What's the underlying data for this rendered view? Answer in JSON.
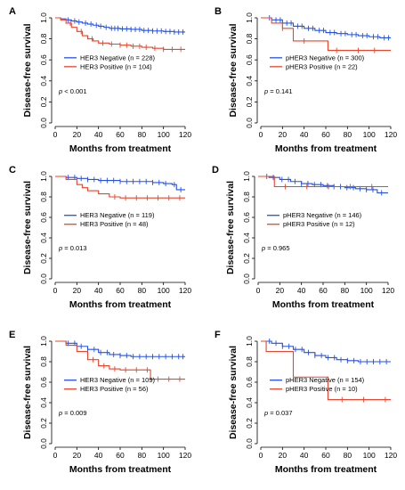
{
  "figure": {
    "panels": [
      {
        "letter": "A",
        "pvalue": {
          "prefix": "p",
          "text": " < 0.001"
        },
        "legend": [
          {
            "text": "HER3 Negative (n = 228)"
          },
          {
            "text": "HER3 Positive (n = 104)"
          }
        ]
      },
      {
        "letter": "B",
        "pvalue": {
          "prefix": "p",
          "text": " = 0.141"
        },
        "legend": [
          {
            "text": "pHER3 Negative (n = 300)"
          },
          {
            "text": "pHER3 Positive (n = 22)"
          }
        ]
      },
      {
        "letter": "C",
        "pvalue": {
          "prefix": "p",
          "text": " = 0.013"
        },
        "legend": [
          {
            "text": "HER3 Negative (n = 119)"
          },
          {
            "text": "HER3 Positive (n = 48)"
          }
        ]
      },
      {
        "letter": "D",
        "pvalue": {
          "prefix": "p",
          "text": " = 0.965"
        },
        "legend": [
          {
            "text": "pHER3 Negative (n = 146)"
          },
          {
            "text": "pHER3 Positive (n = 12)"
          }
        ]
      },
      {
        "letter": "E",
        "pvalue": {
          "prefix": "p",
          "text": " = 0.009"
        },
        "legend": [
          {
            "text": "HER3 Negative (n = 109)"
          },
          {
            "text": "HER3 Positive (n = 56)"
          }
        ]
      },
      {
        "letter": "F",
        "pvalue": {
          "prefix": "p",
          "text": " = 0.037"
        },
        "legend": [
          {
            "text": "pHER3 Negative (n = 154)"
          },
          {
            "text": "pHER3 Positive (n = 10)"
          }
        ]
      }
    ]
  },
  "chart_data": [
    {
      "type": "line",
      "panel": "A",
      "xlabel": "Months from treatment",
      "ylabel": "Disease-free survival",
      "xlim": [
        0,
        120
      ],
      "ylim": [
        0,
        1
      ],
      "xticks": [
        "0",
        "20",
        "40",
        "60",
        "80",
        "100",
        "120"
      ],
      "yticks": [
        "0.0",
        "0.2",
        "0.4",
        "0.6",
        "0.8",
        "1.0"
      ],
      "grid": false,
      "series": [
        {
          "name": "HER3 Negative (n = 228)",
          "color": "#2450e8",
          "x": [
            0,
            5,
            10,
            15,
            20,
            25,
            30,
            35,
            40,
            45,
            50,
            60,
            70,
            80,
            90,
            100,
            110,
            120
          ],
          "y": [
            1.0,
            0.99,
            0.98,
            0.97,
            0.96,
            0.95,
            0.94,
            0.93,
            0.92,
            0.91,
            0.9,
            0.895,
            0.89,
            0.88,
            0.875,
            0.87,
            0.865,
            0.865
          ],
          "censor_x": [
            12,
            18,
            22,
            28,
            33,
            38,
            42,
            47,
            52,
            55,
            58,
            62,
            66,
            70,
            74,
            78,
            82,
            86,
            90,
            94,
            98,
            102,
            106,
            110,
            114,
            118
          ]
        },
        {
          "name": "HER3 Positive (n = 104)",
          "color": "#e8452c",
          "x": [
            0,
            5,
            10,
            15,
            20,
            25,
            30,
            35,
            40,
            50,
            60,
            70,
            80,
            90,
            100,
            110,
            120
          ],
          "y": [
            1.0,
            0.98,
            0.95,
            0.91,
            0.87,
            0.83,
            0.8,
            0.78,
            0.76,
            0.75,
            0.74,
            0.73,
            0.72,
            0.71,
            0.7,
            0.7,
            0.7
          ],
          "censor_x": [
            14,
            24,
            34,
            44,
            52,
            60,
            66,
            72,
            78,
            84,
            92,
            100,
            108,
            116
          ]
        }
      ]
    },
    {
      "type": "line",
      "panel": "B",
      "xlabel": "Months from treatment",
      "ylabel": "Disease-free survival",
      "xlim": [
        0,
        120
      ],
      "ylim": [
        0,
        1
      ],
      "xticks": [
        "0",
        "20",
        "40",
        "60",
        "80",
        "100",
        "120"
      ],
      "yticks": [
        "0.0",
        "0.2",
        "0.4",
        "0.6",
        "0.8",
        "1.0"
      ],
      "grid": false,
      "series": [
        {
          "name": "pHER3 Negative (n = 300)",
          "color": "#2450e8",
          "x": [
            0,
            10,
            20,
            30,
            40,
            50,
            60,
            70,
            80,
            90,
            100,
            110,
            120
          ],
          "y": [
            1.0,
            0.98,
            0.95,
            0.92,
            0.9,
            0.88,
            0.86,
            0.85,
            0.84,
            0.83,
            0.82,
            0.81,
            0.81
          ],
          "censor_x": [
            8,
            14,
            18,
            24,
            28,
            34,
            38,
            44,
            48,
            54,
            58,
            64,
            68,
            74,
            78,
            84,
            88,
            94,
            98,
            104,
            108,
            114,
            118
          ]
        },
        {
          "name": "pHER3 Positive (n = 22)",
          "color": "#e8452c",
          "x": [
            0,
            10,
            20,
            30,
            40,
            50,
            60,
            62,
            70,
            80,
            90,
            100,
            110,
            120
          ],
          "y": [
            1.0,
            0.95,
            0.9,
            0.78,
            0.78,
            0.78,
            0.78,
            0.69,
            0.69,
            0.69,
            0.69,
            0.69,
            0.69,
            0.69
          ],
          "censor_x": [
            20,
            40,
            70,
            90,
            105
          ]
        }
      ]
    },
    {
      "type": "line",
      "panel": "C",
      "xlabel": "Months from treatment",
      "ylabel": "Disease-free survival",
      "xlim": [
        0,
        120
      ],
      "ylim": [
        0,
        1
      ],
      "xticks": [
        "0",
        "20",
        "40",
        "60",
        "80",
        "100",
        "120"
      ],
      "yticks": [
        "0.0",
        "0.2",
        "0.4",
        "0.6",
        "0.8",
        "1.0"
      ],
      "grid": false,
      "series": [
        {
          "name": "HER3 Negative (n = 119)",
          "color": "#2450e8",
          "x": [
            0,
            10,
            20,
            30,
            40,
            50,
            60,
            70,
            80,
            90,
            100,
            108,
            112,
            120
          ],
          "y": [
            1.0,
            0.99,
            0.98,
            0.97,
            0.96,
            0.96,
            0.95,
            0.95,
            0.95,
            0.94,
            0.93,
            0.92,
            0.87,
            0.87
          ],
          "censor_x": [
            12,
            18,
            24,
            30,
            36,
            42,
            48,
            54,
            60,
            66,
            72,
            78,
            84,
            90,
            96,
            102,
            110,
            116
          ]
        },
        {
          "name": "HER3 Positive (n = 48)",
          "color": "#e8452c",
          "x": [
            0,
            10,
            20,
            25,
            30,
            40,
            50,
            60,
            70,
            80,
            90,
            100,
            110,
            120
          ],
          "y": [
            1.0,
            0.97,
            0.92,
            0.89,
            0.86,
            0.83,
            0.8,
            0.79,
            0.79,
            0.79,
            0.79,
            0.79,
            0.79,
            0.79
          ],
          "censor_x": [
            55,
            65,
            75,
            85,
            95,
            105,
            115
          ]
        }
      ]
    },
    {
      "type": "line",
      "panel": "D",
      "xlabel": "Months from treatment",
      "ylabel": "Disease-free survival",
      "xlim": [
        0,
        120
      ],
      "ylim": [
        0,
        1
      ],
      "xticks": [
        "0",
        "20",
        "40",
        "60",
        "80",
        "100",
        "120"
      ],
      "yticks": [
        "0.0",
        "0.2",
        "0.4",
        "0.6",
        "0.8",
        "1.0"
      ],
      "grid": false,
      "series": [
        {
          "name": "pHER3 Negative (n = 146)",
          "color": "#2450e8",
          "x": [
            0,
            10,
            20,
            30,
            40,
            50,
            60,
            70,
            80,
            90,
            100,
            110,
            120
          ],
          "y": [
            1.0,
            0.99,
            0.97,
            0.95,
            0.93,
            0.92,
            0.91,
            0.9,
            0.89,
            0.88,
            0.87,
            0.84,
            0.84
          ],
          "censor_x": [
            8,
            14,
            22,
            28,
            34,
            40,
            46,
            52,
            58,
            64,
            70,
            76,
            82,
            88,
            94,
            100,
            106,
            114
          ]
        },
        {
          "name": "pHER3 Positive (n = 12)",
          "color": "#e8452c",
          "x": [
            0,
            10,
            15,
            20,
            40,
            60,
            80,
            100,
            120
          ],
          "y": [
            1.0,
            1.0,
            0.9,
            0.9,
            0.9,
            0.9,
            0.9,
            0.9,
            0.9
          ],
          "censor_x": [
            25,
            45,
            65,
            85,
            105
          ]
        }
      ]
    },
    {
      "type": "line",
      "panel": "E",
      "xlabel": "Months from treatment",
      "ylabel": "Disease-free survival",
      "xlim": [
        0,
        120
      ],
      "ylim": [
        0,
        1
      ],
      "xticks": [
        "0",
        "20",
        "40",
        "60",
        "80",
        "100",
        "120"
      ],
      "yticks": [
        "0.0",
        "0.2",
        "0.4",
        "0.6",
        "0.8",
        "1.0"
      ],
      "grid": false,
      "series": [
        {
          "name": "HER3 Negative (n = 109)",
          "color": "#2450e8",
          "x": [
            0,
            10,
            20,
            30,
            40,
            50,
            60,
            70,
            80,
            90,
            100,
            110,
            120
          ],
          "y": [
            1.0,
            0.98,
            0.95,
            0.92,
            0.89,
            0.87,
            0.86,
            0.85,
            0.85,
            0.85,
            0.85,
            0.85,
            0.85
          ],
          "censor_x": [
            12,
            18,
            24,
            30,
            36,
            42,
            48,
            54,
            60,
            66,
            72,
            78,
            84,
            90,
            96,
            102,
            108,
            114,
            118
          ]
        },
        {
          "name": "HER3 Positive (n = 56)",
          "color": "#e8452c",
          "x": [
            0,
            10,
            20,
            30,
            40,
            50,
            60,
            70,
            80,
            88,
            100,
            110,
            120
          ],
          "y": [
            1.0,
            0.96,
            0.9,
            0.82,
            0.76,
            0.73,
            0.72,
            0.72,
            0.72,
            0.63,
            0.63,
            0.63,
            0.63
          ],
          "censor_x": [
            35,
            45,
            55,
            65,
            75,
            85,
            95,
            105,
            115
          ]
        }
      ]
    },
    {
      "type": "line",
      "panel": "F",
      "xlabel": "Months from treatment",
      "ylabel": "Disease-free survival",
      "xlim": [
        0,
        120
      ],
      "ylim": [
        0,
        1
      ],
      "xticks": [
        "0",
        "20",
        "40",
        "60",
        "80",
        "100",
        "120"
      ],
      "yticks": [
        "0.0",
        "0.2",
        "0.4",
        "0.6",
        "0.8",
        "1.0"
      ],
      "grid": false,
      "series": [
        {
          "name": "pHER3 Negative (n = 154)",
          "color": "#2450e8",
          "x": [
            0,
            10,
            20,
            30,
            40,
            50,
            60,
            70,
            80,
            90,
            100,
            110,
            120
          ],
          "y": [
            1.0,
            0.98,
            0.95,
            0.92,
            0.89,
            0.86,
            0.84,
            0.82,
            0.81,
            0.8,
            0.8,
            0.8,
            0.8
          ],
          "censor_x": [
            8,
            14,
            20,
            26,
            32,
            38,
            44,
            50,
            56,
            62,
            68,
            74,
            80,
            86,
            92,
            98,
            104,
            110,
            116
          ]
        },
        {
          "name": "pHER3 Positive (n = 10)",
          "color": "#e8452c",
          "x": [
            0,
            5,
            20,
            30,
            60,
            62,
            80,
            100,
            120
          ],
          "y": [
            1.0,
            0.9,
            0.9,
            0.65,
            0.65,
            0.43,
            0.43,
            0.43,
            0.43
          ],
          "censor_x": [
            75,
            95,
            115
          ]
        }
      ]
    }
  ]
}
